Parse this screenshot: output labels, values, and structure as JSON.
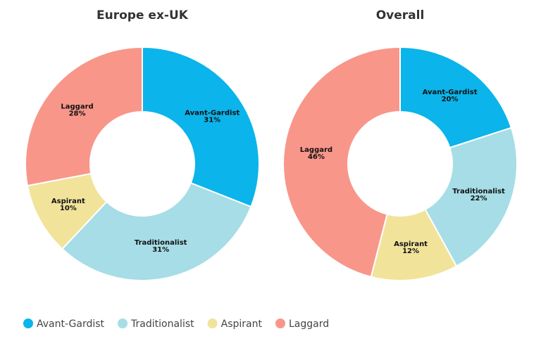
{
  "chart_data": [
    {
      "type": "donut",
      "title": "Europe ex-UK",
      "categories": [
        "Avant-Gardist",
        "Traditionalist",
        "Aspirant",
        "Laggard"
      ],
      "values": [
        31,
        31,
        10,
        28
      ],
      "value_labels": [
        "31%",
        "31%",
        "10%",
        "28%"
      ],
      "colors": [
        "#0bb4ea",
        "#a6dde6",
        "#f2e39b",
        "#f8968a"
      ]
    },
    {
      "type": "donut",
      "title": "Overall",
      "categories": [
        "Avant-Gardist",
        "Traditionalist",
        "Aspirant",
        "Laggard"
      ],
      "values": [
        20,
        22,
        12,
        46
      ],
      "value_labels": [
        "20%",
        "22%",
        "12%",
        "46%"
      ],
      "colors": [
        "#0bb4ea",
        "#a6dde6",
        "#f2e39b",
        "#f8968a"
      ]
    }
  ]
}
